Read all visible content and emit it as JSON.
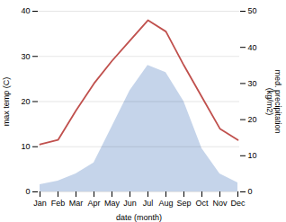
{
  "chart_data": {
    "type": "line",
    "categories": [
      "Jan",
      "Feb",
      "Mar",
      "Apr",
      "May",
      "Jun",
      "Jul",
      "Aug",
      "Sep",
      "Oct",
      "Nov",
      "Dec"
    ],
    "xlabel": "date (month)",
    "ylabel": "max temp (C)",
    "y2label": "med. precipitation\n(kg/m2)",
    "series": [
      {
        "type": "area",
        "axis": "y2",
        "color": "#c5d4ea",
        "values": [
          2.0,
          3.0,
          5.0,
          8.0,
          18.0,
          28.0,
          35.0,
          33.0,
          25.0,
          12.0,
          5.0,
          2.5
        ]
      },
      {
        "type": "line",
        "color": "#c0504d",
        "values": [
          10.5,
          11.5,
          18.0,
          24.0,
          29.0,
          33.5,
          38.0,
          35.5,
          28.0,
          21.0,
          14.0,
          11.5
        ]
      }
    ],
    "ylim": [
      0,
      40
    ],
    "yticks": [
      0,
      10,
      20,
      30,
      40
    ],
    "y2lim": [
      0,
      50
    ],
    "y2ticks": [
      0,
      10,
      20,
      30,
      40,
      50
    ],
    "grid": true
  }
}
